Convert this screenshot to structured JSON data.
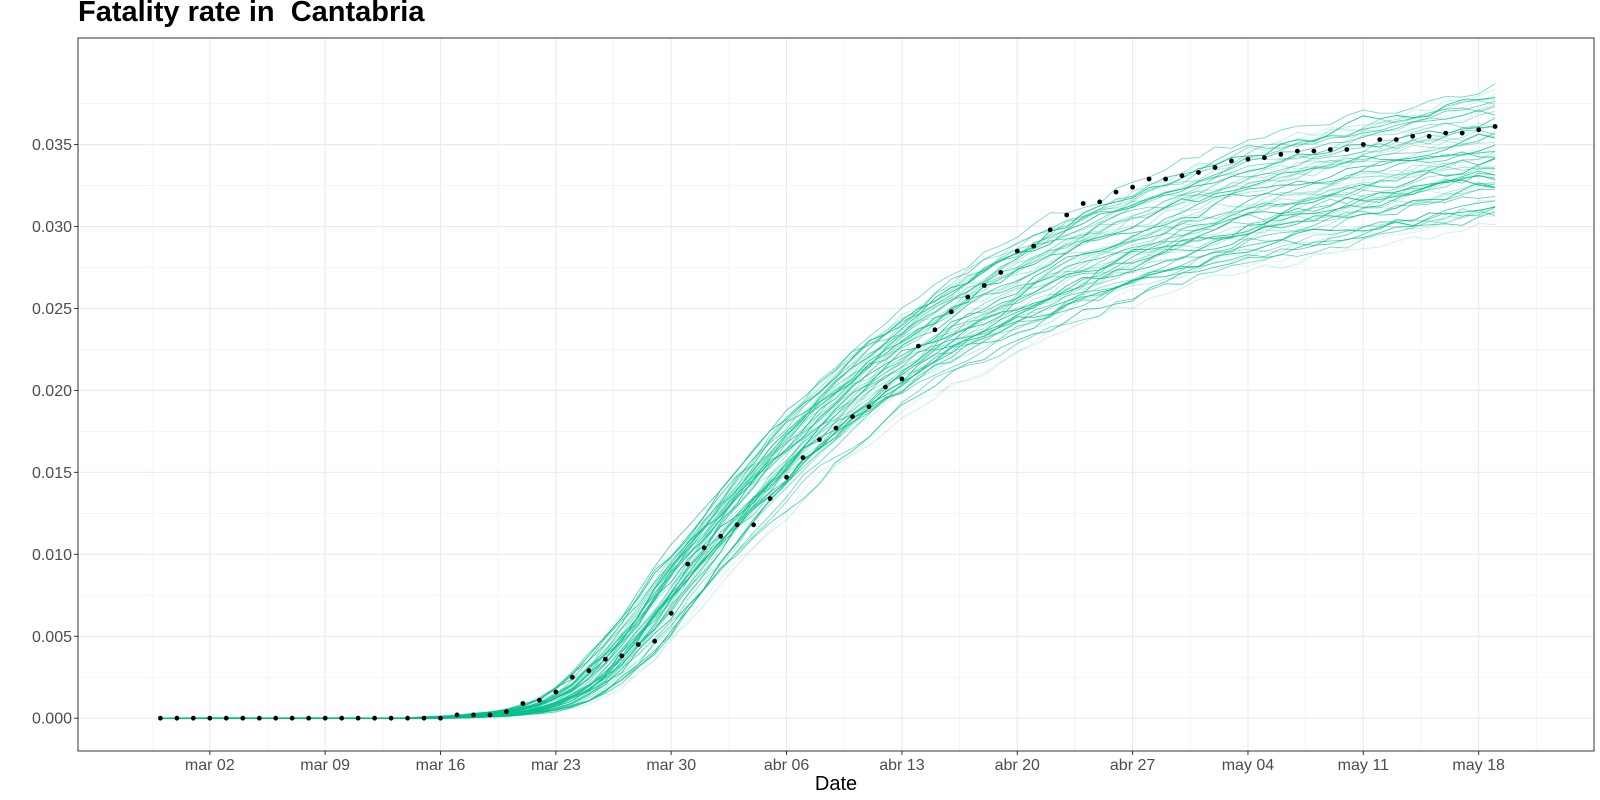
{
  "chart_data": {
    "type": "line",
    "title": "Fatality rate in  Cantabria",
    "xlabel": "Date",
    "ylabel": "",
    "x_start": "2020-02-28",
    "x_end": "2020-05-20",
    "xlim": [
      "2020-02-23",
      "2020-05-25"
    ],
    "ylim": [
      -0.002,
      0.0415
    ],
    "x_ticks": [
      {
        "date": "2020-03-02",
        "label": "mar 02"
      },
      {
        "date": "2020-03-09",
        "label": "mar 09"
      },
      {
        "date": "2020-03-16",
        "label": "mar 16"
      },
      {
        "date": "2020-03-23",
        "label": "mar 23"
      },
      {
        "date": "2020-03-30",
        "label": "mar 30"
      },
      {
        "date": "2020-04-06",
        "label": "abr 06"
      },
      {
        "date": "2020-04-13",
        "label": "abr 13"
      },
      {
        "date": "2020-04-20",
        "label": "abr 20"
      },
      {
        "date": "2020-04-27",
        "label": "abr 27"
      },
      {
        "date": "2020-05-04",
        "label": "may 04"
      },
      {
        "date": "2020-05-11",
        "label": "may 11"
      },
      {
        "date": "2020-05-18",
        "label": "may 18"
      }
    ],
    "y_ticks": [
      {
        "value": 0.0,
        "label": "0.000"
      },
      {
        "value": 0.005,
        "label": "0.005"
      },
      {
        "value": 0.01,
        "label": "0.010"
      },
      {
        "value": 0.015,
        "label": "0.015"
      },
      {
        "value": 0.02,
        "label": "0.020"
      },
      {
        "value": 0.025,
        "label": "0.025"
      },
      {
        "value": 0.03,
        "label": "0.030"
      },
      {
        "value": 0.035,
        "label": "0.035"
      }
    ],
    "grid": true,
    "legend": "none",
    "observed_series": {
      "marker": "dot",
      "color": "#000000",
      "start_date": "2020-02-28",
      "values": [
        0.0,
        0.0,
        0.0,
        0.0,
        0.0,
        0.0,
        0.0,
        0.0,
        0.0,
        0.0,
        0.0,
        0.0,
        0.0,
        0.0,
        0.0,
        0.0,
        0.0,
        0.0,
        0.0002,
        0.0002,
        0.0002,
        0.0004,
        0.0009,
        0.0011,
        0.0016,
        0.0025,
        0.0029,
        0.0036,
        0.0038,
        0.0045,
        0.0047,
        0.0064,
        0.0094,
        0.0104,
        0.0111,
        0.0118,
        0.0118,
        0.0134,
        0.0147,
        0.0159,
        0.017,
        0.0177,
        0.0184,
        0.019,
        0.0202,
        0.0207,
        0.0227,
        0.0237,
        0.0248,
        0.0257,
        0.0264,
        0.0272,
        0.0285,
        0.0288,
        0.0298,
        0.0307,
        0.0314,
        0.0315,
        0.0321,
        0.0324,
        0.0329,
        0.0329,
        0.0331,
        0.0333,
        0.0336,
        0.034,
        0.0341,
        0.0342,
        0.0344,
        0.0346,
        0.0346,
        0.0347,
        0.0347,
        0.035,
        0.0353,
        0.0353,
        0.0355,
        0.0355,
        0.0357,
        0.0357,
        0.0359,
        0.0361
      ]
    },
    "simulated_series": {
      "color": "#00BE8C",
      "count": 60,
      "start_date": "2020-02-28",
      "central_values": [
        0.0,
        0.0,
        0.0,
        0.0,
        0.0,
        0.0,
        0.0,
        0.0,
        0.0,
        0.0,
        0.0,
        0.0,
        0.0,
        0.0,
        0.0,
        0.0,
        0.0,
        0.0,
        0.0001,
        0.0001,
        0.0002,
        0.0003,
        0.0004,
        0.0006,
        0.0009,
        0.0014,
        0.002,
        0.0029,
        0.004,
        0.0052,
        0.0064,
        0.0078,
        0.0092,
        0.0104,
        0.0116,
        0.0128,
        0.014,
        0.0151,
        0.0162,
        0.0172,
        0.0182,
        0.0191,
        0.02,
        0.0209,
        0.0217,
        0.0224,
        0.0231,
        0.0238,
        0.0244,
        0.025,
        0.0256,
        0.0261,
        0.0266,
        0.0271,
        0.0276,
        0.028,
        0.0285,
        0.0289,
        0.0293,
        0.0297,
        0.03,
        0.0304,
        0.0307,
        0.031,
        0.0313,
        0.0316,
        0.0319,
        0.0321,
        0.0324,
        0.0326,
        0.0328,
        0.0331,
        0.0333,
        0.0335,
        0.0337,
        0.0339,
        0.0341,
        0.0343,
        0.0345,
        0.0347,
        0.0349,
        0.0351
      ],
      "final_range": [
        0.033,
        0.0395
      ]
    }
  }
}
